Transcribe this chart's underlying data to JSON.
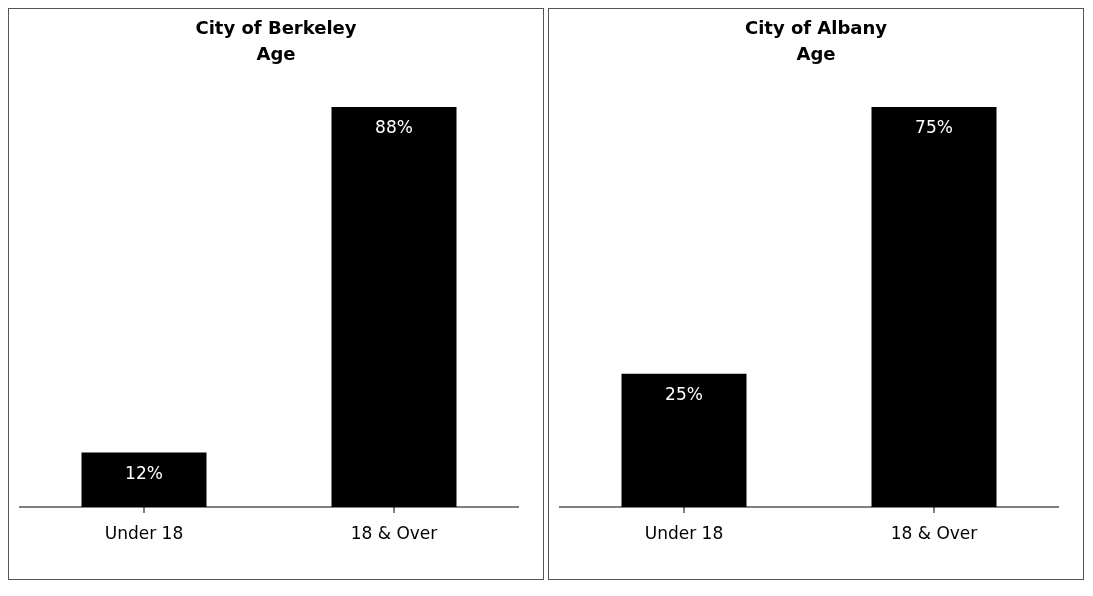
{
  "chart_data": [
    {
      "type": "bar",
      "title": "City of Berkeley",
      "subtitle": "Age",
      "categories": [
        "Under 18",
        "18 & Over"
      ],
      "values": [
        12,
        88
      ],
      "value_labels": [
        "12%",
        "88%"
      ],
      "color": "#000000"
    },
    {
      "type": "bar",
      "title": "City of Albany",
      "subtitle": "Age",
      "categories": [
        "Under 18",
        "18 & Over"
      ],
      "values": [
        25,
        75
      ],
      "value_labels": [
        "25%",
        "75%"
      ],
      "color": "#000000"
    }
  ]
}
